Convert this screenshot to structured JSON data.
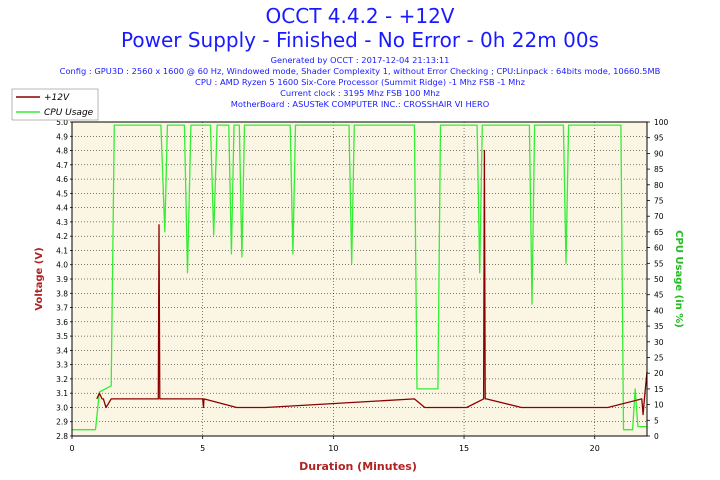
{
  "header": {
    "title": "OCCT 4.4.2 - +12V",
    "subtitle": "Power Supply - Finished - No Error - 0h 22m 00s",
    "info": [
      "Generated by OCCT : 2017-12-04 21:13:11",
      "Config : GPU3D : 2560 x 1600 @ 60 Hz, Windowed mode, Shader Complexity 1, without Error Checking ; CPU:Linpack : 64bits mode, 10660.5MB",
      "CPU : AMD Ryzen 5 1600 Six-Core Processor (Summit Ridge) -1 Mhz FSB -1 Mhz",
      "Current clock : 3195 Mhz FSB 100 Mhz",
      "MotherBoard : ASUSTeK COMPUTER INC.: CROSSHAIR VI HERO"
    ]
  },
  "colors": {
    "voltage": "#8b0000",
    "cpu": "#33ee33",
    "plot_bg": "#fbf6e3",
    "grid": "#000000",
    "header_text": "#1a1aff",
    "axis_title": "#b22222",
    "cpu_axis_title": "#22bb22"
  },
  "chart_data": {
    "type": "line",
    "xlabel": "Duration (Minutes)",
    "ylabel": "Voltage (V)",
    "y2label": "CPU Usage (in %)",
    "xlim": [
      0,
      22
    ],
    "ylim": [
      2.8,
      5.0
    ],
    "y2lim": [
      0,
      100
    ],
    "x_ticks": [
      0,
      5,
      10,
      15,
      20
    ],
    "y_ticks": [
      "2.8",
      "2.9",
      "3.0",
      "3.1",
      "3.2",
      "3.3",
      "3.4",
      "3.5",
      "3.6",
      "3.7",
      "3.8",
      "3.9",
      "4.0",
      "4.1",
      "4.2",
      "4.3",
      "4.4",
      "4.5",
      "4.6",
      "4.7",
      "4.8",
      "4.9",
      "5.0"
    ],
    "y2_ticks": [
      "0",
      "5",
      "10",
      "15",
      "20",
      "25",
      "30",
      "35",
      "40",
      "45",
      "50",
      "55",
      "60",
      "65",
      "70",
      "75",
      "80",
      "85",
      "90",
      "95",
      "100"
    ],
    "grid": true,
    "legend": "top-left",
    "series": [
      {
        "name": "+12V",
        "axis": "left",
        "x": [
          0.95,
          1.05,
          1.15,
          1.2,
          1.3,
          1.5,
          1.55,
          3.3,
          3.33,
          3.36,
          3.4,
          5.0,
          5.03,
          5.05,
          6.3,
          6.5,
          7.4,
          13.1,
          13.5,
          14.2,
          15.1,
          15.75,
          15.78,
          15.81,
          15.85,
          17.2,
          18.3,
          20.5,
          21.8,
          21.85,
          21.9,
          22.0
        ],
        "y": [
          3.06,
          3.1,
          3.06,
          3.06,
          3.0,
          3.06,
          3.06,
          3.06,
          4.28,
          3.06,
          3.06,
          3.06,
          3.0,
          3.06,
          3.0,
          3.0,
          3.0,
          3.06,
          3.0,
          3.0,
          3.0,
          3.06,
          4.8,
          3.06,
          3.06,
          3.0,
          3.0,
          3.0,
          3.06,
          2.95,
          3.06,
          3.25
        ]
      },
      {
        "name": "CPU Usage",
        "axis": "right",
        "x": [
          0,
          0.9,
          1.05,
          1.5,
          1.62,
          1.72,
          3.4,
          3.55,
          3.65,
          4.3,
          4.42,
          4.55,
          5.3,
          5.42,
          5.55,
          6.0,
          6.1,
          6.2,
          6.4,
          6.5,
          6.6,
          8.35,
          8.45,
          8.55,
          10.6,
          10.7,
          10.8,
          13.1,
          13.2,
          13.3,
          14.0,
          14.1,
          14.2,
          15.5,
          15.6,
          15.7,
          17.5,
          17.6,
          17.7,
          18.8,
          18.9,
          19.0,
          21.0,
          21.1,
          21.2,
          21.45,
          21.55,
          21.65,
          22.0
        ],
        "y": [
          2,
          2,
          14,
          16,
          99,
          99,
          99,
          65,
          99,
          99,
          52,
          99,
          99,
          64,
          99,
          99,
          58,
          99,
          99,
          57,
          99,
          99,
          58,
          99,
          99,
          55,
          99,
          99,
          15,
          15,
          15,
          99,
          99,
          99,
          52,
          99,
          99,
          42,
          99,
          99,
          55,
          99,
          99,
          2,
          2,
          2,
          15,
          3,
          3
        ]
      }
    ]
  }
}
